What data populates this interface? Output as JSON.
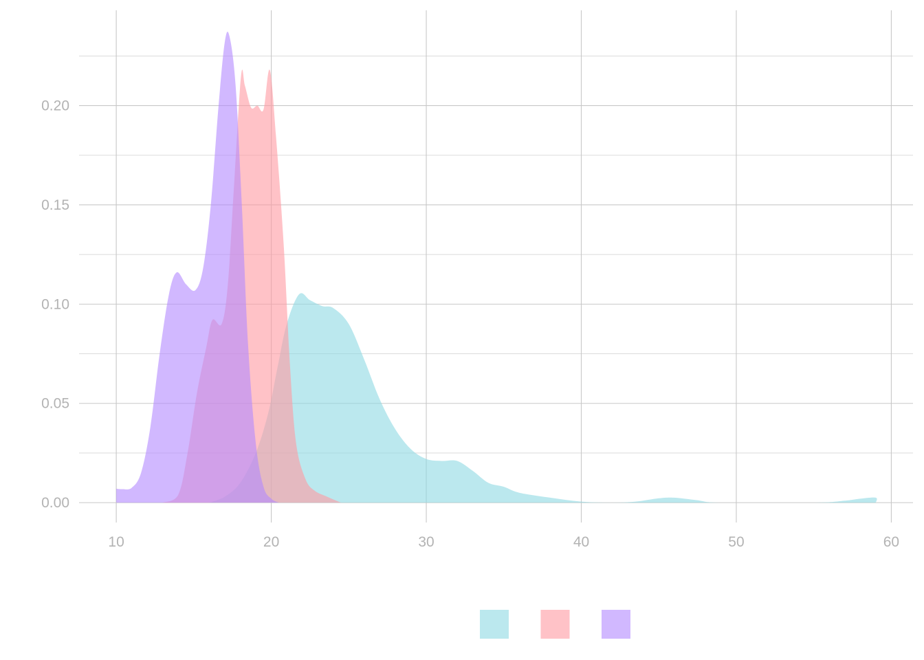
{
  "chart_data": {
    "type": "area",
    "subtype": "density",
    "title": "",
    "xlabel": "",
    "ylabel": "",
    "xlim": [
      7.6,
      61.4
    ],
    "ylim": [
      -0.01,
      0.248
    ],
    "x_ticks": [
      10,
      20,
      30,
      40,
      50,
      60
    ],
    "x_tick_labels": [
      "10",
      "20",
      "30",
      "40",
      "50",
      "60"
    ],
    "y_ticks": [
      0,
      0.05,
      0.1,
      0.15,
      0.2
    ],
    "y_tick_labels": [
      "0.00",
      "0.05",
      "0.10",
      "0.15",
      "0.20"
    ],
    "y_minor_ticks": [
      0.025,
      0.075,
      0.125,
      0.175,
      0.225
    ],
    "grid": true,
    "legend": {
      "position": "bottom",
      "show_labels": false
    },
    "series": [
      {
        "color": "#8ED8E2",
        "opacity": 0.6,
        "points": [
          [
            16,
            0
          ],
          [
            17,
            0.003
          ],
          [
            18,
            0.01
          ],
          [
            19,
            0.025
          ],
          [
            19.8,
            0.045
          ],
          [
            20.4,
            0.068
          ],
          [
            21,
            0.09
          ],
          [
            21.8,
            0.105
          ],
          [
            22.5,
            0.102
          ],
          [
            23.3,
            0.099
          ],
          [
            24,
            0.098
          ],
          [
            25,
            0.09
          ],
          [
            26,
            0.072
          ],
          [
            27,
            0.052
          ],
          [
            28,
            0.037
          ],
          [
            29,
            0.027
          ],
          [
            30,
            0.022
          ],
          [
            31,
            0.021
          ],
          [
            32,
            0.021
          ],
          [
            33,
            0.016
          ],
          [
            34,
            0.01
          ],
          [
            35,
            0.008
          ],
          [
            36,
            0.005
          ],
          [
            38,
            0.0025
          ],
          [
            40,
            0.0005
          ],
          [
            42,
            0
          ],
          [
            43.5,
            0.0005
          ],
          [
            45,
            0.0022
          ],
          [
            46,
            0.0025
          ],
          [
            47.5,
            0.0012
          ],
          [
            49,
            0
          ],
          [
            55,
            0
          ],
          [
            57,
            0.001
          ],
          [
            58,
            0.002
          ],
          [
            59,
            0.0025
          ],
          [
            59,
            0
          ]
        ]
      },
      {
        "color": "#FF9AA2",
        "opacity": 0.6,
        "points": [
          [
            13,
            0
          ],
          [
            14,
            0.004
          ],
          [
            14.6,
            0.025
          ],
          [
            15.2,
            0.055
          ],
          [
            15.8,
            0.078
          ],
          [
            16.2,
            0.092
          ],
          [
            16.8,
            0.09
          ],
          [
            17.2,
            0.11
          ],
          [
            17.6,
            0.16
          ],
          [
            18.05,
            0.215
          ],
          [
            18.3,
            0.21
          ],
          [
            18.7,
            0.199
          ],
          [
            19.1,
            0.2
          ],
          [
            19.5,
            0.198
          ],
          [
            19.9,
            0.218
          ],
          [
            20.3,
            0.185
          ],
          [
            20.8,
            0.13
          ],
          [
            21.2,
            0.07
          ],
          [
            21.6,
            0.03
          ],
          [
            22.2,
            0.012
          ],
          [
            22.8,
            0.006
          ],
          [
            23.6,
            0.003
          ],
          [
            24.5,
            0
          ]
        ]
      },
      {
        "color": "#B388FF",
        "opacity": 0.6,
        "points": [
          [
            10,
            0.007
          ],
          [
            10.4,
            0.0068
          ],
          [
            11,
            0.0075
          ],
          [
            11.6,
            0.015
          ],
          [
            12.2,
            0.038
          ],
          [
            12.8,
            0.075
          ],
          [
            13.4,
            0.105
          ],
          [
            13.9,
            0.116
          ],
          [
            14.5,
            0.11
          ],
          [
            15.1,
            0.107
          ],
          [
            15.6,
            0.118
          ],
          [
            16.1,
            0.15
          ],
          [
            16.6,
            0.2
          ],
          [
            17,
            0.232
          ],
          [
            17.3,
            0.235
          ],
          [
            17.7,
            0.21
          ],
          [
            18.1,
            0.15
          ],
          [
            18.5,
            0.08
          ],
          [
            19,
            0.03
          ],
          [
            19.5,
            0.008
          ],
          [
            20,
            0.002
          ],
          [
            20.5,
            0
          ]
        ]
      }
    ]
  }
}
